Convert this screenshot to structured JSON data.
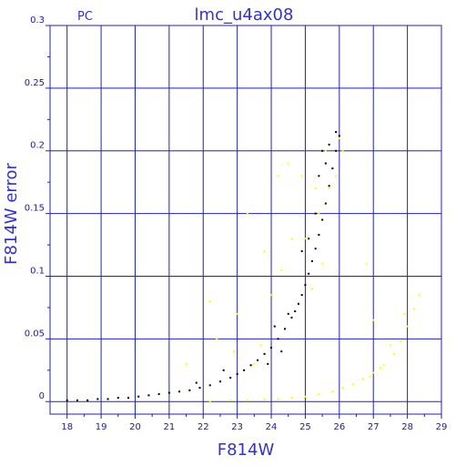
{
  "chart_data": {
    "type": "scatter",
    "title": "lmc_u4ax08",
    "corner_label": "PC",
    "xlabel": "F814W",
    "ylabel": "F814W error",
    "xlim": [
      17.5,
      29
    ],
    "ylim": [
      -0.01,
      0.3
    ],
    "x_ticks": [
      "18",
      "19",
      "20",
      "21",
      "22",
      "23",
      "24",
      "25",
      "26",
      "27",
      "28",
      "29"
    ],
    "y_ticks": [
      "0",
      "0.05",
      "0.1",
      "0.15",
      "0.2",
      "0.25",
      "0.3"
    ],
    "grid": true,
    "colors": {
      "frame": "#2222aa",
      "grid": "#2222aa",
      "text": "#3333cc",
      "black_points": "#000000",
      "yellow_points": "#ffff00"
    },
    "series": [
      {
        "color": "#000000",
        "points": [
          [
            18.0,
            0.001
          ],
          [
            18.3,
            0.001
          ],
          [
            18.6,
            0.001
          ],
          [
            18.9,
            0.002
          ],
          [
            19.2,
            0.002
          ],
          [
            19.5,
            0.003
          ],
          [
            19.8,
            0.003
          ],
          [
            20.1,
            0.004
          ],
          [
            20.4,
            0.005
          ],
          [
            20.7,
            0.006
          ],
          [
            21.0,
            0.007
          ],
          [
            21.3,
            0.008
          ],
          [
            21.6,
            0.009
          ],
          [
            21.9,
            0.011
          ],
          [
            22.2,
            0.013
          ],
          [
            22.5,
            0.016
          ],
          [
            22.8,
            0.019
          ],
          [
            23.0,
            0.022
          ],
          [
            23.2,
            0.025
          ],
          [
            23.4,
            0.029
          ],
          [
            23.6,
            0.033
          ],
          [
            23.8,
            0.038
          ],
          [
            24.0,
            0.043
          ],
          [
            24.2,
            0.05
          ],
          [
            24.4,
            0.058
          ],
          [
            24.6,
            0.067
          ],
          [
            24.7,
            0.072
          ],
          [
            24.8,
            0.078
          ],
          [
            24.9,
            0.085
          ],
          [
            25.0,
            0.093
          ],
          [
            25.1,
            0.102
          ],
          [
            25.2,
            0.112
          ],
          [
            25.3,
            0.122
          ],
          [
            25.4,
            0.133
          ],
          [
            25.5,
            0.145
          ],
          [
            25.6,
            0.158
          ],
          [
            25.7,
            0.172
          ],
          [
            25.8,
            0.186
          ],
          [
            25.9,
            0.2
          ],
          [
            26.0,
            0.212
          ],
          [
            24.1,
            0.06
          ],
          [
            24.5,
            0.07
          ],
          [
            23.9,
            0.03
          ],
          [
            24.3,
            0.04
          ],
          [
            22.6,
            0.025
          ],
          [
            21.8,
            0.015
          ],
          [
            24.9,
            0.12
          ],
          [
            25.3,
            0.15
          ],
          [
            25.6,
            0.19
          ],
          [
            25.9,
            0.215
          ],
          [
            25.4,
            0.18
          ],
          [
            25.7,
            0.205
          ],
          [
            25.5,
            0.2
          ],
          [
            25.1,
            0.13
          ]
        ]
      },
      {
        "color": "#ffff00",
        "points": [
          [
            22.2,
            0.0
          ],
          [
            22.8,
            0.001
          ],
          [
            23.3,
            0.001
          ],
          [
            23.8,
            0.002
          ],
          [
            24.2,
            0.002
          ],
          [
            24.6,
            0.003
          ],
          [
            25.0,
            0.004
          ],
          [
            25.4,
            0.006
          ],
          [
            25.8,
            0.008
          ],
          [
            26.1,
            0.011
          ],
          [
            26.4,
            0.014
          ],
          [
            26.7,
            0.018
          ],
          [
            27.0,
            0.023
          ],
          [
            27.3,
            0.029
          ],
          [
            27.6,
            0.038
          ],
          [
            27.8,
            0.048
          ],
          [
            28.0,
            0.06
          ],
          [
            28.2,
            0.074
          ],
          [
            28.35,
            0.085
          ],
          [
            27.2,
            0.027
          ],
          [
            26.9,
            0.02
          ],
          [
            27.5,
            0.045
          ],
          [
            27.9,
            0.07
          ],
          [
            22.2,
            0.08
          ],
          [
            22.4,
            0.05
          ],
          [
            23.0,
            0.07
          ],
          [
            23.3,
            0.15
          ],
          [
            23.8,
            0.12
          ],
          [
            24.3,
            0.105
          ],
          [
            24.5,
            0.19
          ],
          [
            24.9,
            0.18
          ],
          [
            25.0,
            0.13
          ],
          [
            25.2,
            0.09
          ],
          [
            25.4,
            0.15
          ],
          [
            25.6,
            0.2
          ],
          [
            25.7,
            0.17
          ],
          [
            26.1,
            0.2
          ],
          [
            23.7,
            0.045
          ],
          [
            23.5,
            0.03
          ],
          [
            24.0,
            0.085
          ],
          [
            26.8,
            0.11
          ],
          [
            27.0,
            0.065
          ],
          [
            25.3,
            0.17
          ],
          [
            25.5,
            0.11
          ],
          [
            24.6,
            0.13
          ],
          [
            21.5,
            0.03
          ],
          [
            22.9,
            0.04
          ],
          [
            25.9,
            0.18
          ],
          [
            26.0,
            0.21
          ],
          [
            24.2,
            0.18
          ]
        ]
      }
    ]
  }
}
